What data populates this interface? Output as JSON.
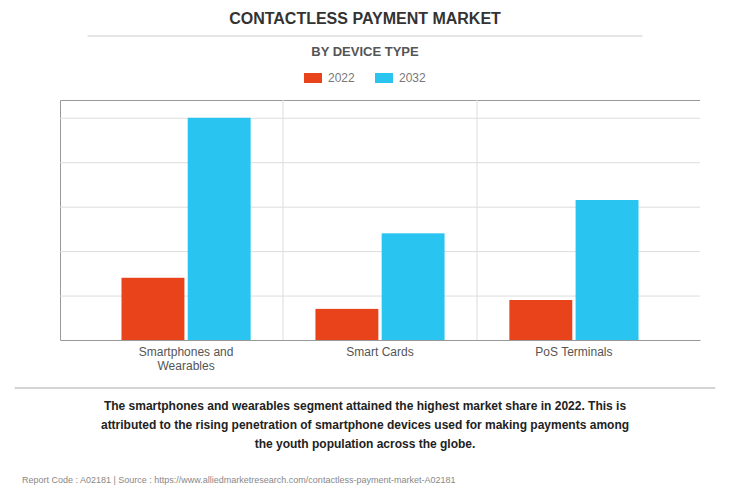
{
  "chart_data": {
    "type": "bar",
    "title": "CONTACTLESS PAYMENT MARKET",
    "subtitle": "BY DEVICE TYPE",
    "categories": [
      "Smartphones and\nWearables",
      "Smart Cards",
      "PoS Terminals"
    ],
    "series": [
      {
        "name": "2022",
        "color": "#E8431A",
        "values": [
          28,
          14,
          18
        ]
      },
      {
        "name": "2032",
        "color": "#29C4F0",
        "values": [
          100,
          48,
          63
        ]
      }
    ],
    "ylim": [
      0,
      108
    ],
    "yticks": [
      0,
      20,
      40,
      60,
      80,
      100
    ],
    "grid": true,
    "tick_labels": "x",
    "legend": "top",
    "annotations": [
      "The smartphones and wearables segment attained the highest market share in 2022. This is\nattributed to the rising penetration of smartphone devices used for making payments among\nthe youth population across the globe.",
      "Report Code : A02181  |  Source : https://www.alliedmarketresearch.com/contactless-payment-market-A02181"
    ]
  }
}
